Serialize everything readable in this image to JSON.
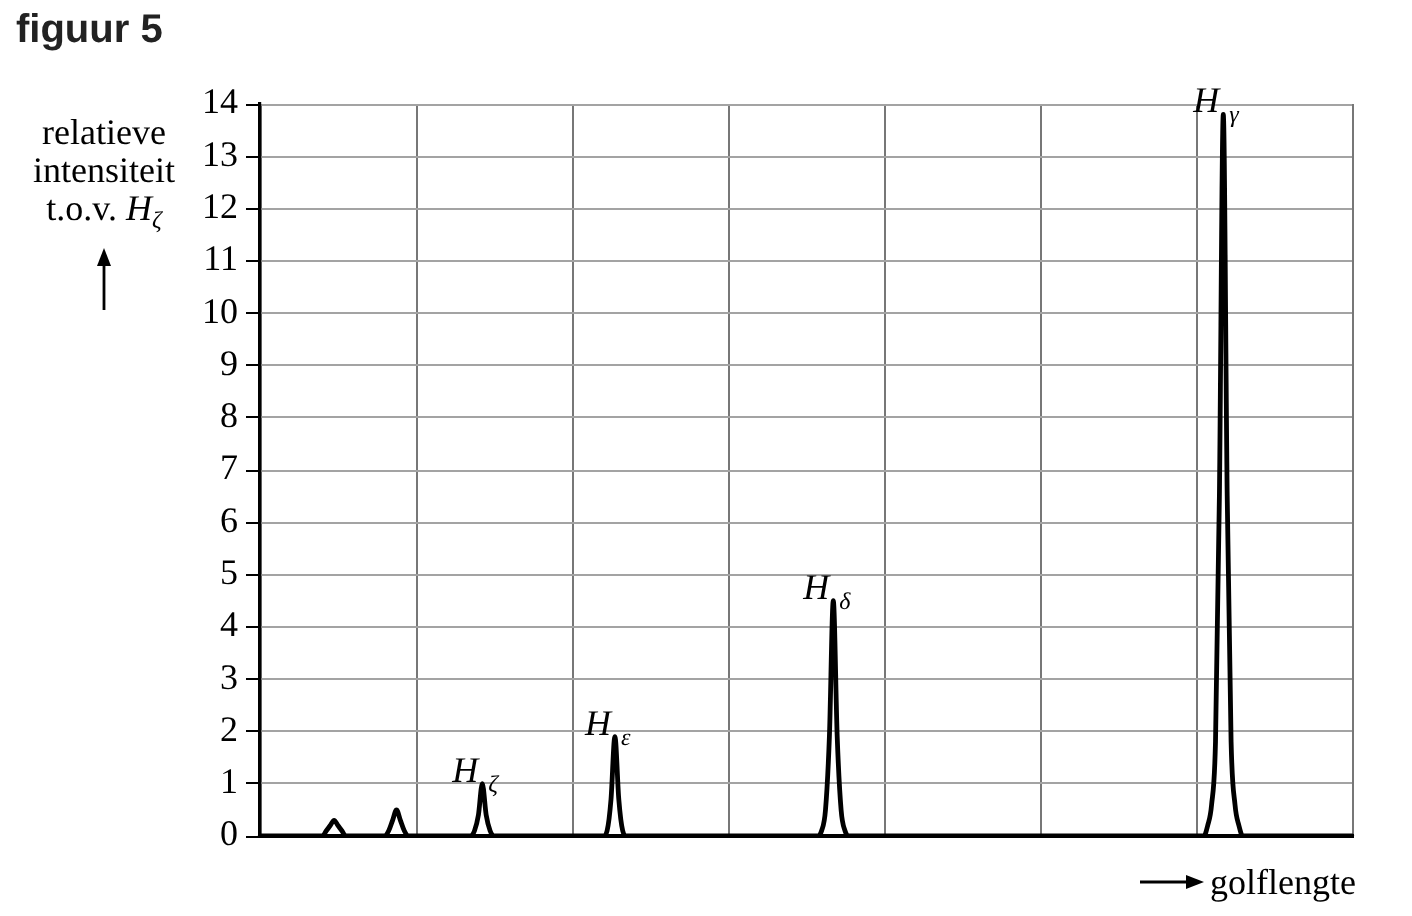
{
  "chart_data": {
    "type": "line",
    "title": "figuur 5",
    "xlabel": "golflengte",
    "ylabel": "relatieve intensiteit t.o.v. H$_{ζ}$",
    "categories": [
      null,
      null,
      null,
      null,
      null,
      null,
      null,
      null,
      null,
      null,
      null,
      null,
      null,
      null,
      null,
      null,
      null,
      null,
      null,
      null,
      null,
      null,
      null,
      null,
      null,
      null,
      null,
      null,
      null,
      null,
      null,
      null,
      null,
      null,
      null,
      null,
      null,
      null,
      null,
      null,
      null,
      null,
      null,
      null,
      null,
      null,
      null,
      null,
      null,
      null,
      null,
      null,
      null,
      null,
      null,
      null,
      null,
      null,
      null,
      null,
      null,
      null,
      null,
      null,
      null,
      null,
      null,
      null,
      null,
      null,
      null,
      null,
      null,
      null,
      null,
      null,
      null,
      null,
      null,
      null,
      null,
      null,
      null,
      null,
      null,
      null,
      null,
      null,
      null,
      null,
      null,
      null,
      null,
      null,
      null,
      null,
      null,
      null,
      null,
      null,
      null,
      null,
      null,
      null,
      null,
      null,
      null,
      null,
      null,
      null,
      null,
      null,
      null,
      null,
      null,
      null,
      null,
      null,
      null,
      null,
      null,
      null,
      null,
      null,
      null,
      null,
      null,
      null,
      null,
      null,
      null,
      null,
      null,
      null,
      null,
      null,
      null,
      null,
      null,
      null,
      null,
      null,
      null,
      null,
      null,
      null,
      null,
      null,
      null,
      null,
      null,
      null,
      null,
      null,
      null,
      null,
      null,
      null,
      null,
      null,
      null,
      null,
      null,
      null,
      null,
      null,
      null,
      null,
      null,
      null,
      null,
      null,
      null,
      null,
      null,
      null,
      null,
      null,
      null,
      null,
      null,
      null,
      null,
      null,
      null,
      null,
      null,
      null,
      null,
      null,
      null,
      null,
      null,
      null,
      null,
      null,
      null,
      null,
      null,
      null,
      null,
      null,
      null,
      null,
      null,
      null,
      null,
      null,
      null,
      null,
      null,
      null,
      null,
      null,
      null,
      null,
      null,
      null,
      null,
      null,
      null,
      null,
      null,
      null,
      null,
      null,
      null,
      null,
      null,
      null,
      null,
      null,
      null,
      null,
      null,
      null,
      null,
      null,
      null,
      null,
      null,
      null,
      null,
      null,
      null,
      null,
      null,
      null,
      null,
      null,
      null,
      null,
      null,
      null,
      null,
      null,
      null,
      null,
      null,
      null,
      null,
      null,
      null,
      null,
      null,
      null,
      null,
      null,
      null,
      null,
      null,
      null,
      null,
      null,
      null,
      null,
      null,
      null,
      null,
      null,
      null
    ],
    "color": "#000000",
    "values": [
      0,
      0,
      0,
      0,
      0,
      0,
      0,
      0,
      0,
      0,
      0,
      0,
      0,
      0,
      0,
      0,
      0,
      0.1,
      0.2,
      0.3,
      0.2,
      0.1,
      0,
      0,
      0,
      0,
      0,
      0,
      0,
      0,
      0,
      0,
      0,
      0.1,
      0.3,
      0.5,
      0.3,
      0.1,
      0,
      0,
      0,
      0,
      0,
      0,
      0,
      0,
      0,
      0,
      0,
      0,
      0,
      0,
      0,
      0,
      0,
      0.1,
      0.4,
      1,
      0.4,
      0.1,
      0,
      0,
      0,
      0,
      0,
      0,
      0,
      0,
      0,
      0,
      0,
      0,
      0,
      0,
      0,
      0,
      0,
      0,
      0,
      0,
      0,
      0,
      0,
      0,
      0,
      0,
      0,
      0,
      0,
      0.1,
      0.7,
      1.9,
      0.7,
      0.1,
      0,
      0,
      0,
      0,
      0,
      0,
      0,
      0,
      0,
      0,
      0,
      0,
      0,
      0,
      0,
      0,
      0,
      0,
      0,
      0,
      0,
      0,
      0,
      0,
      0,
      0,
      0,
      0,
      0,
      0,
      0,
      0,
      0,
      0,
      0,
      0,
      0,
      0,
      0,
      0,
      0,
      0,
      0,
      0,
      0,
      0,
      0,
      0,
      0,
      0,
      0.1,
      0.5,
      1.9,
      4.5,
      1.9,
      0.5,
      0.1,
      0,
      0,
      0,
      0,
      0,
      0,
      0,
      0,
      0,
      0,
      0,
      0,
      0,
      0,
      0,
      0,
      0,
      0,
      0,
      0,
      0,
      0,
      0,
      0,
      0,
      0,
      0,
      0,
      0,
      0,
      0,
      0,
      0,
      0,
      0,
      0,
      0,
      0,
      0,
      0,
      0,
      0,
      0,
      0,
      0,
      0,
      0,
      0,
      0,
      0,
      0,
      0,
      0,
      0,
      0,
      0,
      0,
      0,
      0,
      0,
      0,
      0,
      0,
      0,
      0,
      0,
      0,
      0,
      0,
      0,
      0,
      0,
      0,
      0,
      0,
      0,
      0,
      0,
      0,
      0,
      0,
      0,
      0,
      0,
      0,
      0,
      0,
      0,
      0,
      0,
      0,
      0,
      0.2,
      0.6,
      1.8,
      6.5,
      13.8,
      6.5,
      1.8,
      0.6,
      0.2,
      0,
      0,
      0,
      0,
      0,
      0,
      0,
      0,
      0,
      0,
      0,
      0,
      0,
      0,
      0,
      0,
      0,
      0,
      0,
      0,
      0,
      0,
      0,
      0,
      0,
      0,
      0,
      0,
      0
    ],
    "ylim": [
      0,
      14
    ],
    "yticks": [
      0,
      1,
      2,
      3,
      4,
      5,
      6,
      7,
      8,
      9,
      10,
      11,
      12,
      13,
      14
    ],
    "grid": true,
    "tick_labels": "y",
    "annotations": [
      {
        "text": "H$_{ζ}$",
        "y": 1
      },
      {
        "text": "H$_{ε}$",
        "y": 1.9
      },
      {
        "text": "H$_{δ}$",
        "y": 4.5
      },
      {
        "text": "H$_{γ}$",
        "y": 13.8
      }
    ]
  }
}
